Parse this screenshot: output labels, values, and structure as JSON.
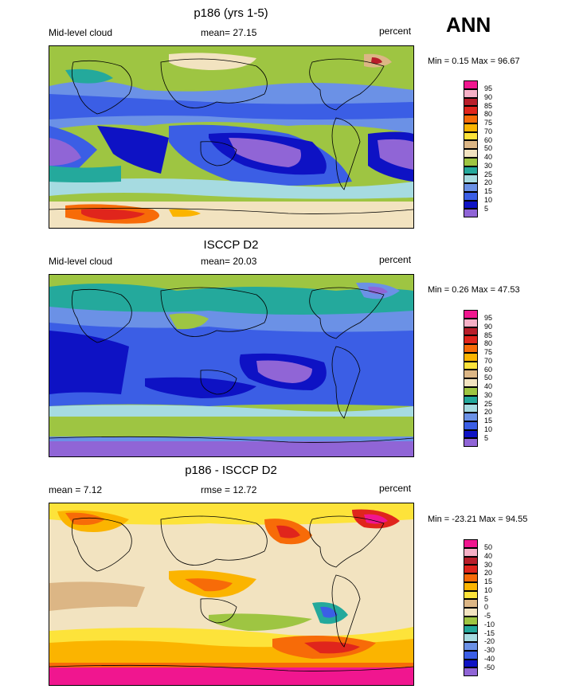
{
  "season": "ANN",
  "panels": [
    {
      "title": "p186 (yrs 1-5)",
      "left": "Mid-level cloud",
      "center": "mean=  27.15",
      "right": "percent",
      "minmax": "Min =   0.15 Max =  96.67",
      "legend_labels": [
        "95",
        "90",
        "85",
        "80",
        "75",
        "70",
        "60",
        "50",
        "40",
        "30",
        "25",
        "20",
        "15",
        "10",
        "5"
      ],
      "legend_colors": [
        "#f0168f",
        "#f6b0c6",
        "#b81e2a",
        "#e0251c",
        "#f76b08",
        "#fbb400",
        "#fde33a",
        "#dcb685",
        "#f2e3c0",
        "#9ec542",
        "#24a99c",
        "#a6dbe1",
        "#6b91e6",
        "#3b5ee5",
        "#0e12c4",
        "#9065d6"
      ]
    },
    {
      "title": "ISCCP D2",
      "left": "Mid-level cloud",
      "center": "mean=  20.03",
      "right": "percent",
      "minmax": "Min =   0.26 Max =  47.53",
      "legend_labels": [
        "95",
        "90",
        "85",
        "80",
        "75",
        "70",
        "60",
        "50",
        "40",
        "30",
        "25",
        "20",
        "15",
        "10",
        "5"
      ],
      "legend_colors": [
        "#f0168f",
        "#f6b0c6",
        "#b81e2a",
        "#e0251c",
        "#f76b08",
        "#fbb400",
        "#fde33a",
        "#dcb685",
        "#f2e3c0",
        "#9ec542",
        "#24a99c",
        "#a6dbe1",
        "#6b91e6",
        "#3b5ee5",
        "#0e12c4",
        "#9065d6"
      ]
    },
    {
      "title": "p186 - ISCCP D2",
      "left": "mean =   7.12",
      "center": "rmse =  12.72",
      "right": "percent",
      "minmax": "Min = -23.21 Max =  94.55",
      "legend_labels": [
        "50",
        "40",
        "30",
        "20",
        "15",
        "10",
        "5",
        "0",
        "-5",
        "-10",
        "-15",
        "-20",
        "-30",
        "-40",
        "-50"
      ],
      "legend_colors": [
        "#f0168f",
        "#f6b0c6",
        "#b81e2a",
        "#e0251c",
        "#f76b08",
        "#fbb400",
        "#fde33a",
        "#dcb685",
        "#f2e3c0",
        "#9ec542",
        "#24a99c",
        "#a6dbe1",
        "#6b91e6",
        "#3b5ee5",
        "#0e12c4",
        "#9065d6"
      ]
    }
  ]
}
